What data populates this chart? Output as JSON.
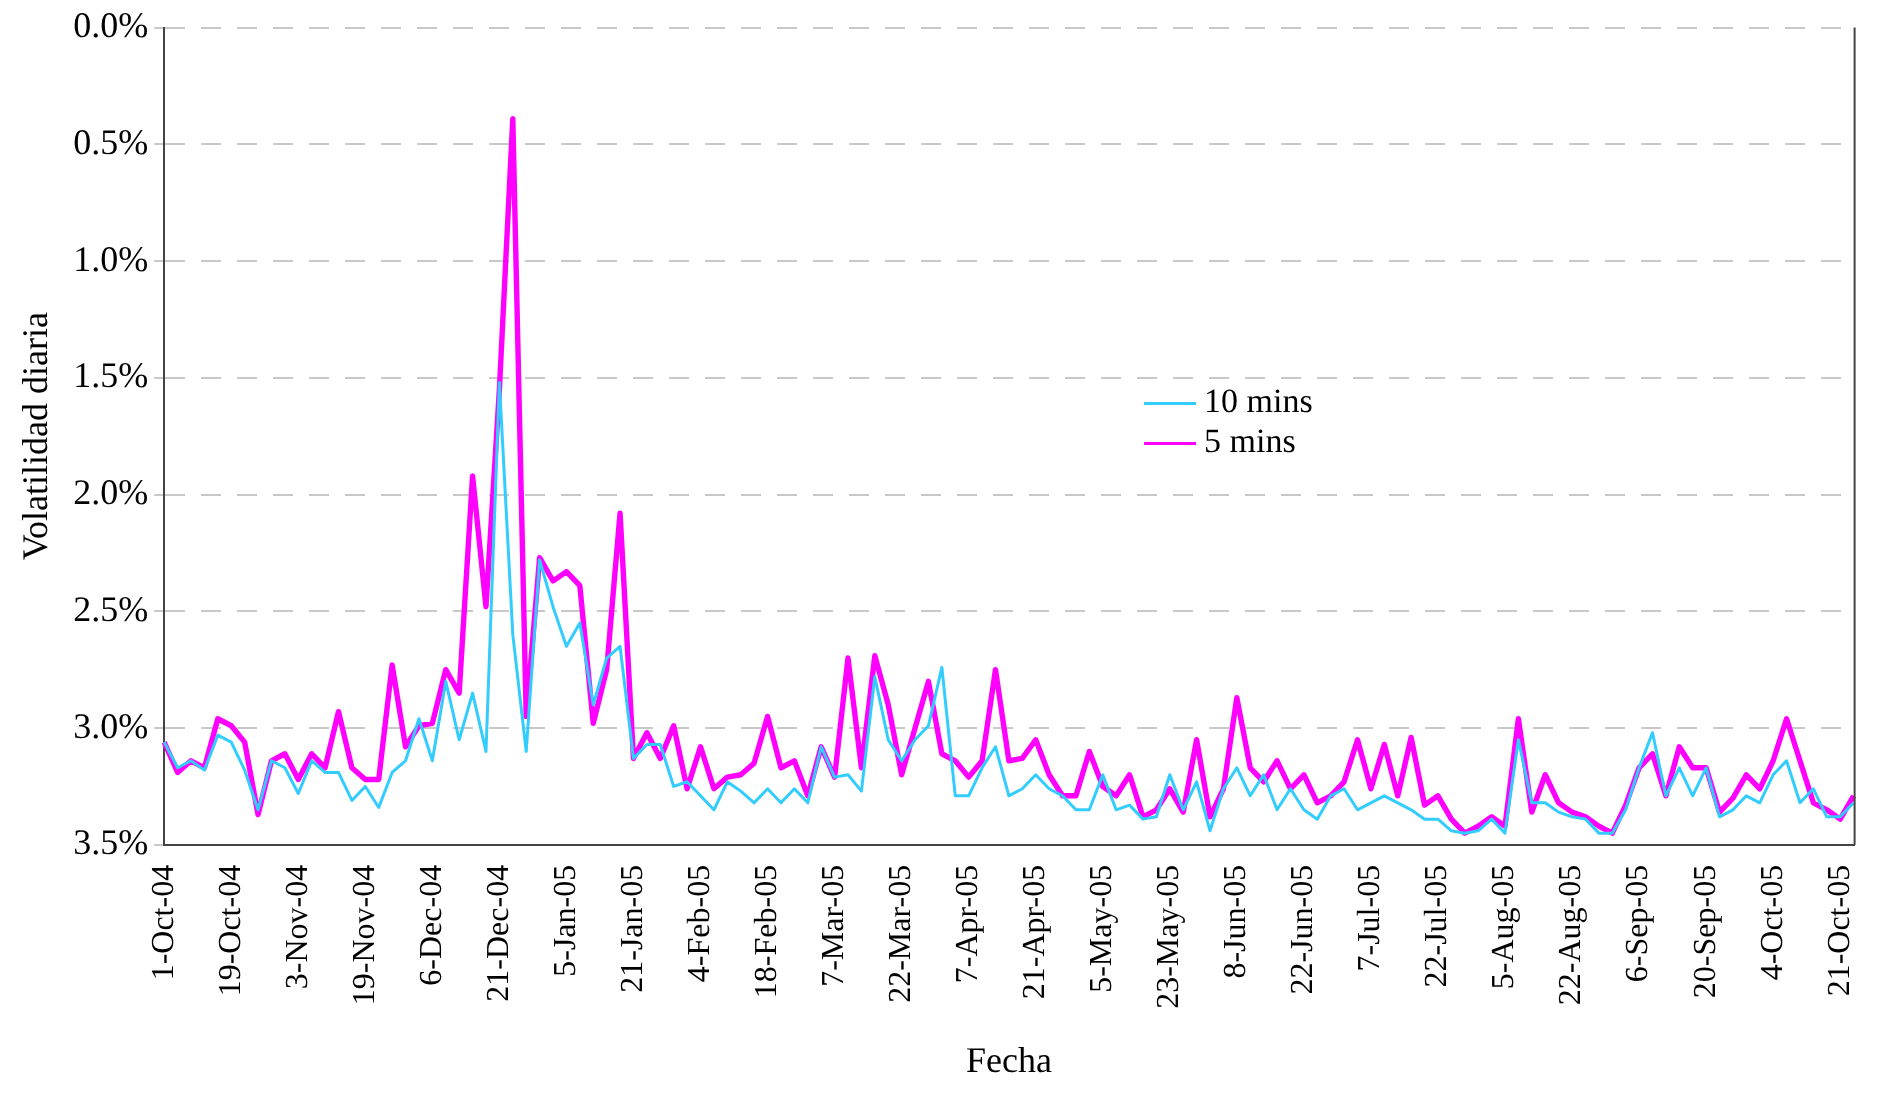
{
  "chart_data": {
    "type": "line",
    "xlabel": "Fecha",
    "ylabel": "Volatilidad diaria",
    "categories": [
      "1-Oct-04",
      null,
      null,
      null,
      null,
      "19-Oct-04",
      null,
      null,
      null,
      null,
      "3-Nov-04",
      null,
      null,
      null,
      null,
      "19-Nov-04",
      null,
      null,
      null,
      null,
      "6-Dec-04",
      null,
      null,
      null,
      null,
      "21-Dec-04",
      null,
      null,
      null,
      null,
      "5-Jan-05",
      null,
      null,
      null,
      null,
      "21-Jan-05",
      null,
      null,
      null,
      null,
      "4-Feb-05",
      null,
      null,
      null,
      null,
      "18-Feb-05",
      null,
      null,
      null,
      null,
      "7-Mar-05",
      null,
      null,
      null,
      null,
      "22-Mar-05",
      null,
      null,
      null,
      null,
      "7-Apr-05",
      null,
      null,
      null,
      null,
      "21-Apr-05",
      null,
      null,
      null,
      null,
      "5-May-05",
      null,
      null,
      null,
      null,
      "23-May-05",
      null,
      null,
      null,
      null,
      "8-Jun-05",
      null,
      null,
      null,
      null,
      "22-Jun-05",
      null,
      null,
      null,
      null,
      "7-Jul-05",
      null,
      null,
      null,
      null,
      "22-Jul-05",
      null,
      null,
      null,
      null,
      "5-Aug-05",
      null,
      null,
      null,
      null,
      "22-Aug-05",
      null,
      null,
      null,
      null,
      "6-Sep-05",
      null,
      null,
      null,
      null,
      "20-Sep-05",
      null,
      null,
      null,
      null,
      "4-Oct-05",
      null,
      null,
      null,
      null,
      "21-Oct-05",
      null
    ],
    "series": [
      {
        "name": "10 mins",
        "color": "#33ccff",
        "values": [
          3.06,
          3.17,
          3.14,
          3.18,
          3.03,
          3.06,
          3.18,
          3.35,
          3.14,
          3.17,
          3.28,
          3.14,
          3.19,
          3.19,
          3.31,
          3.25,
          3.34,
          3.19,
          3.14,
          2.96,
          3.14,
          2.8,
          3.05,
          2.85,
          3.1,
          1.52,
          2.6,
          3.1,
          2.28,
          2.48,
          2.65,
          2.55,
          2.9,
          2.7,
          2.65,
          3.13,
          3.07,
          3.07,
          3.25,
          3.23,
          3.29,
          3.35,
          3.23,
          3.27,
          3.32,
          3.26,
          3.32,
          3.26,
          3.32,
          3.08,
          3.21,
          3.2,
          3.27,
          2.78,
          3.05,
          3.14,
          3.05,
          2.99,
          2.74,
          3.29,
          3.29,
          3.17,
          3.08,
          3.29,
          3.26,
          3.2,
          3.26,
          3.29,
          3.35,
          3.35,
          3.2,
          3.35,
          3.33,
          3.39,
          3.38,
          3.2,
          3.35,
          3.23,
          3.44,
          3.26,
          3.17,
          3.29,
          3.2,
          3.35,
          3.26,
          3.35,
          3.39,
          3.29,
          3.26,
          3.35,
          3.32,
          3.29,
          3.32,
          3.35,
          3.39,
          3.39,
          3.44,
          3.45,
          3.44,
          3.39,
          3.45,
          3.05,
          3.32,
          3.32,
          3.36,
          3.38,
          3.39,
          3.45,
          3.45,
          3.35,
          3.17,
          3.02,
          3.29,
          3.17,
          3.29,
          3.17,
          3.38,
          3.35,
          3.29,
          3.32,
          3.2,
          3.14,
          3.32,
          3.26,
          3.38,
          3.38,
          3.32
        ]
      },
      {
        "name": "5 mins",
        "color": "#ff00ff",
        "values": [
          3.06,
          3.19,
          3.14,
          3.17,
          2.96,
          2.99,
          3.06,
          3.37,
          3.14,
          3.11,
          3.22,
          3.11,
          3.17,
          2.93,
          3.17,
          3.22,
          3.22,
          2.73,
          3.08,
          2.99,
          2.98,
          2.75,
          2.85,
          1.92,
          2.48,
          1.55,
          0.39,
          2.95,
          2.27,
          2.37,
          2.33,
          2.39,
          2.98,
          2.75,
          2.08,
          3.13,
          3.02,
          3.13,
          2.99,
          3.26,
          3.08,
          3.26,
          3.21,
          3.2,
          3.15,
          2.95,
          3.17,
          3.14,
          3.29,
          3.08,
          3.21,
          2.7,
          3.17,
          2.69,
          2.9,
          3.2,
          3.0,
          2.8,
          3.11,
          3.14,
          3.21,
          3.14,
          2.75,
          3.14,
          3.13,
          3.05,
          3.2,
          3.29,
          3.29,
          3.1,
          3.25,
          3.29,
          3.2,
          3.38,
          3.35,
          3.26,
          3.36,
          3.05,
          3.38,
          3.26,
          2.87,
          3.17,
          3.23,
          3.14,
          3.26,
          3.2,
          3.32,
          3.29,
          3.23,
          3.05,
          3.26,
          3.07,
          3.29,
          3.04,
          3.33,
          3.29,
          3.39,
          3.45,
          3.42,
          3.38,
          3.42,
          2.96,
          3.36,
          3.2,
          3.32,
          3.36,
          3.38,
          3.42,
          3.45,
          3.33,
          3.17,
          3.11,
          3.29,
          3.08,
          3.17,
          3.17,
          3.36,
          3.3,
          3.2,
          3.26,
          3.14,
          2.96,
          3.14,
          3.32,
          3.35,
          3.39,
          3.29
        ]
      }
    ],
    "ylim": [
      3.5,
      0
    ],
    "yticks": [
      {
        "value": 0,
        "label": "0.0%"
      },
      {
        "value": 0.5,
        "label": "0.5%"
      },
      {
        "value": 1,
        "label": "1.0%"
      },
      {
        "value": 1.5,
        "label": "1.5%"
      },
      {
        "value": 2,
        "label": "2.0%"
      },
      {
        "value": 2.5,
        "label": "2.5%"
      },
      {
        "value": 3,
        "label": "3.0%"
      },
      {
        "value": 3.5,
        "label": "3.5%"
      }
    ],
    "grid": "y",
    "legend": "center",
    "marker": "none",
    "line_style": "solid"
  }
}
